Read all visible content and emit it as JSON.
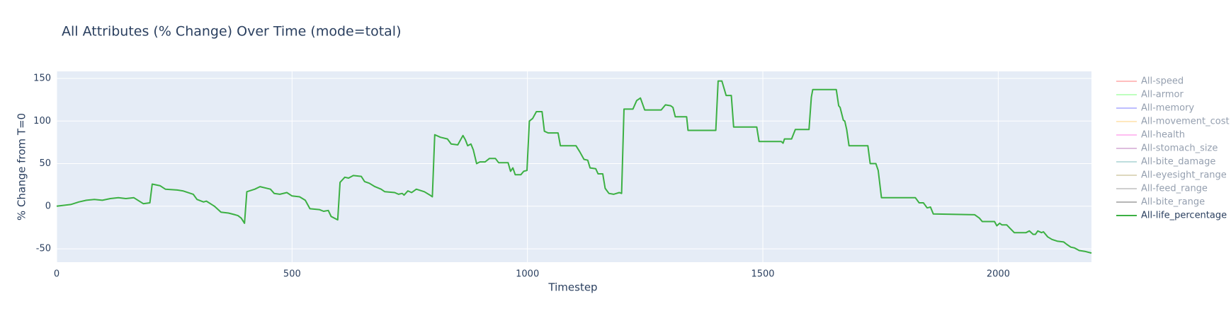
{
  "chart_data": {
    "type": "line",
    "title": "All Attributes (% Change) Over Time (mode=total)",
    "xlabel": "Timestep",
    "ylabel": "% Change from T=0",
    "xlim": [
      0,
      2198
    ],
    "ylim": [
      -65.7,
      158.3
    ],
    "xticks": [
      0,
      500,
      1000,
      1500,
      2000
    ],
    "yticks": [
      -50,
      0,
      50,
      100,
      150
    ],
    "grid": true,
    "legend": "right",
    "background": "#e5ecf6",
    "x": [
      0,
      30,
      47,
      63,
      80,
      97,
      114,
      131,
      147,
      164,
      184,
      198,
      203,
      220,
      231,
      256,
      268,
      290,
      298,
      312,
      318,
      335,
      349,
      365,
      379,
      385,
      392,
      399,
      404,
      421,
      432,
      454,
      462,
      474,
      489,
      500,
      516,
      528,
      538,
      558,
      567,
      577,
      583,
      597,
      602,
      612,
      620,
      630,
      647,
      654,
      664,
      676,
      689,
      697,
      718,
      726,
      734,
      738,
      746,
      754,
      764,
      781,
      793,
      798,
      803,
      815,
      830,
      838,
      852,
      863,
      868,
      873,
      880,
      885,
      892,
      899,
      910,
      919,
      932,
      939,
      959,
      964,
      969,
      974,
      986,
      992,
      999,
      1004,
      1011,
      1019,
      1031,
      1036,
      1044,
      1065,
      1070,
      1103,
      1111,
      1120,
      1128,
      1133,
      1145,
      1150,
      1160,
      1165,
      1173,
      1183,
      1195,
      1200,
      1205,
      1224,
      1232,
      1240,
      1249,
      1284,
      1293,
      1304,
      1309,
      1314,
      1338,
      1341,
      1400,
      1405,
      1413,
      1422,
      1433,
      1438,
      1487,
      1492,
      1539,
      1543,
      1546,
      1561,
      1569,
      1598,
      1603,
      1606,
      1656,
      1661,
      1664,
      1671,
      1674,
      1678,
      1683,
      1723,
      1728,
      1740,
      1745,
      1752,
      1824,
      1832,
      1841,
      1849,
      1856,
      1862,
      1950,
      1955,
      1960,
      1966,
      1992,
      1997,
      2003,
      2008,
      2018,
      2025,
      2034,
      2059,
      2066,
      2074,
      2079,
      2084,
      2092,
      2096,
      2105,
      2114,
      2125,
      2139,
      2146,
      2154,
      2162,
      2172,
      2184,
      2198
    ],
    "series": [
      {
        "name": "All-speed",
        "color": "#ff7f7f",
        "visible": "legendonly"
      },
      {
        "name": "All-armor",
        "color": "#7fff7f",
        "visible": "legendonly"
      },
      {
        "name": "All-memory",
        "color": "#7f7fff",
        "visible": "legendonly"
      },
      {
        "name": "All-movement_cost",
        "color": "#ffd27f",
        "visible": "legendonly"
      },
      {
        "name": "All-health",
        "color": "#ff7fe5",
        "visible": "legendonly"
      },
      {
        "name": "All-stomach_size",
        "color": "#bf7fbf",
        "visible": "legendonly"
      },
      {
        "name": "All-bite_damage",
        "color": "#7fbfbf",
        "visible": "legendonly"
      },
      {
        "name": "All-eyesight_range",
        "color": "#bfb27f",
        "visible": "legendonly"
      },
      {
        "name": "All-feed_range",
        "color": "#a0a0a0",
        "visible": "legendonly"
      },
      {
        "name": "All-bite_range",
        "color": "#707070",
        "visible": "legendonly"
      },
      {
        "name": "All-life_percentage",
        "color": "#3cb043",
        "visible": true,
        "values": [
          0,
          2,
          5,
          7,
          8,
          7,
          9,
          10,
          9,
          10,
          3,
          4,
          26,
          24,
          20,
          19,
          18,
          14,
          8,
          5,
          6,
          0,
          -7,
          -8,
          -10,
          -11,
          -14,
          -20,
          17,
          20,
          23,
          20,
          15,
          14,
          16,
          12,
          11,
          7,
          -3,
          -4,
          -6,
          -5,
          -12,
          -16,
          28,
          34,
          33,
          36,
          35,
          29,
          27,
          23,
          20,
          17,
          16,
          14,
          15,
          13,
          18,
          16,
          20,
          17,
          13,
          11,
          84,
          81,
          79,
          73,
          72,
          83,
          78,
          71,
          73,
          66,
          50,
          52,
          52,
          56,
          56,
          51,
          51,
          41,
          45,
          37,
          37,
          41,
          42,
          100,
          103,
          111,
          111,
          88,
          86,
          86,
          71,
          71,
          64,
          55,
          54,
          45,
          44,
          38,
          38,
          21,
          15,
          14,
          16,
          15,
          114,
          114,
          124,
          127,
          113,
          113,
          119,
          118,
          116,
          105,
          105,
          89,
          89,
          147,
          147,
          130,
          130,
          93,
          93,
          76,
          76,
          74,
          79,
          79,
          90,
          90,
          128,
          137,
          137,
          118,
          116,
          101,
          100,
          90,
          71,
          71,
          50,
          50,
          42,
          10,
          10,
          4,
          4,
          -2,
          -1,
          -9,
          -10,
          -12,
          -14,
          -18,
          -18,
          -23,
          -20,
          -22,
          -22,
          -26,
          -31,
          -31,
          -29,
          -33,
          -33,
          -29,
          -31,
          -30,
          -36,
          -39,
          -41,
          -42,
          -45,
          -48,
          -49,
          -52,
          -53,
          -55
        ]
      }
    ]
  }
}
